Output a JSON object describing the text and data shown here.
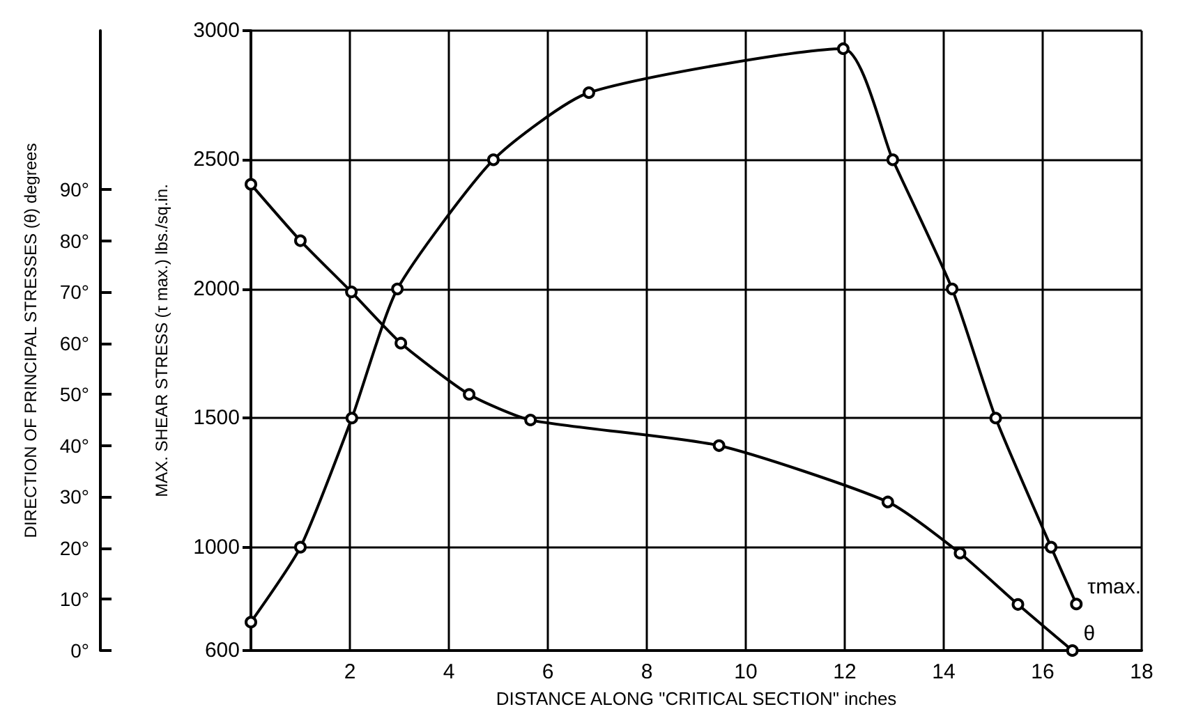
{
  "chart_data": {
    "type": "line",
    "xlabel": "DISTANCE ALONG \"CRITICAL SECTION\" inches",
    "ylabel": "MAX. SHEAR STRESS (τ max.) lbs./sq.in.",
    "y2label": "DIRECTION OF PRINCIPAL STRESSES (θ) degrees",
    "series": [
      {
        "name": "τmax.",
        "color": "#000000",
        "x": [
          0,
          1,
          2.04,
          2.96,
          4.9,
          6.83,
          11.97,
          12.97,
          14.17,
          15.05,
          16.17,
          16.68
        ],
        "values": [
          710,
          1000,
          1500,
          2000,
          2500,
          2760,
          2930,
          2500,
          2000,
          1500,
          1000,
          780
        ]
      },
      {
        "name": "θ",
        "color": "#000000",
        "axis": "y2",
        "x": [
          0,
          1,
          2.03,
          3.03,
          4.41,
          5.65,
          9.46,
          12.87,
          14.33,
          15.5,
          16.6
        ],
        "values": [
          91,
          80,
          70,
          60,
          50,
          45,
          40,
          29,
          19,
          9,
          0
        ]
      }
    ],
    "xlim": [
      0,
      18
    ],
    "xticks": [
      2,
      4,
      6,
      8,
      10,
      12,
      14,
      16,
      18
    ],
    "ylim": [
      600,
      3000
    ],
    "yticks": [
      600,
      1000,
      1500,
      2000,
      2500,
      3000
    ],
    "y2lim": [
      0,
      121
    ],
    "y2ticks": [
      {
        "value": 0,
        "label": "0°"
      },
      {
        "value": 10,
        "label": "10°"
      },
      {
        "value": 20,
        "label": "20°"
      },
      {
        "value": 30,
        "label": "30°"
      },
      {
        "value": 40,
        "label": "40°"
      },
      {
        "value": 50,
        "label": "50°"
      },
      {
        "value": 60,
        "label": "60°"
      },
      {
        "value": 70,
        "label": "70°"
      },
      {
        "value": 80,
        "label": "80°"
      },
      {
        "value": 90,
        "label": "90°"
      }
    ],
    "grid": true,
    "marker": "circle",
    "line_style": "solid"
  }
}
